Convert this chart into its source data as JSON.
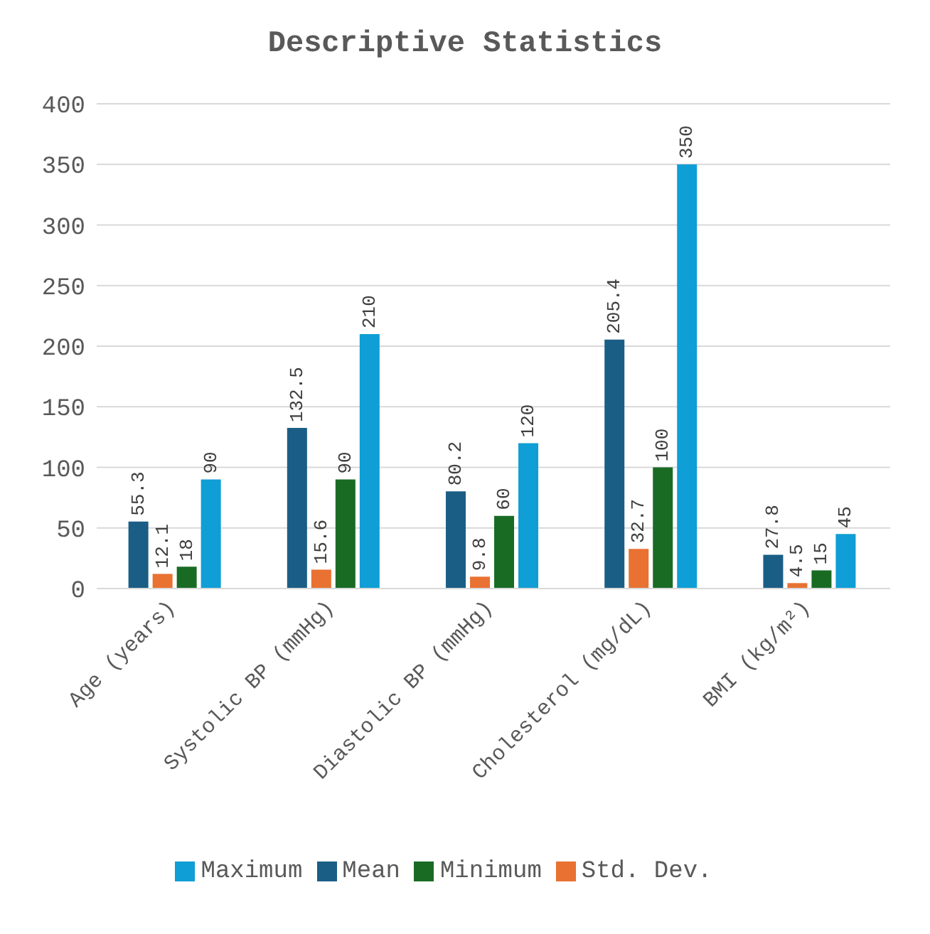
{
  "chart_data": {
    "type": "bar",
    "title": "Descriptive Statistics",
    "categories": [
      "Age (years)",
      "Systolic BP (mmHg)",
      "Diastolic BP (mmHg)",
      "Cholesterol (mg/dL)",
      "BMI (kg/m²)"
    ],
    "series": [
      {
        "name": "Mean",
        "color": "#1a5e85",
        "values": [
          55.3,
          132.5,
          80.2,
          205.4,
          27.8
        ]
      },
      {
        "name": "Std. Dev.",
        "color": "#e97132",
        "values": [
          12.1,
          15.6,
          9.8,
          32.7,
          4.5
        ]
      },
      {
        "name": "Minimum",
        "color": "#196b24",
        "values": [
          18,
          90,
          60,
          100,
          15
        ]
      },
      {
        "name": "Maximum",
        "color": "#0f9ed5",
        "values": [
          90,
          210,
          120,
          350,
          45
        ]
      }
    ],
    "ylim": [
      0,
      400
    ],
    "yticks": [
      0,
      50,
      100,
      150,
      200,
      250,
      300,
      350,
      400
    ],
    "grid": "y",
    "legend": "bottom",
    "data_labels": true
  }
}
